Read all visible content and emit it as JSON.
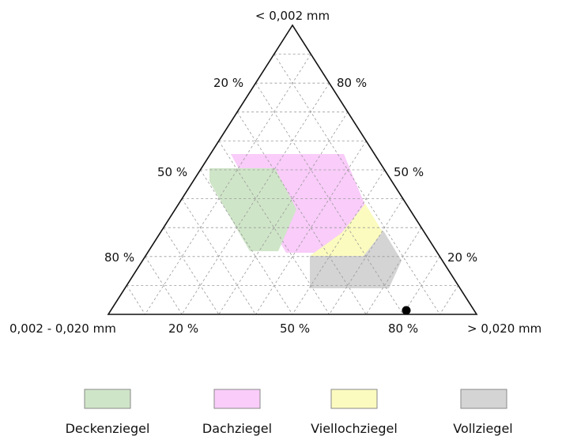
{
  "vertices": {
    "top": "< 0,002 mm",
    "left": "0,002 - 0,020 mm",
    "right": "> 0,020 mm"
  },
  "ticks": {
    "left_edge": [
      "20 %",
      "50 %",
      "80 %"
    ],
    "right_edge": [
      "80 %",
      "50 %",
      "20 %"
    ],
    "bottom_edge": [
      "20 %",
      "50 %",
      "80 %"
    ]
  },
  "regions": [
    {
      "name": "Dachziegel",
      "color": "#f9ccf9"
    },
    {
      "name": "Viellochziegel",
      "color": "#fbfbbf"
    },
    {
      "name": "Vollziegel",
      "color": "#d4d4d4"
    },
    {
      "name": "Deckenziegel",
      "color": "#cfe5c8"
    }
  ],
  "legend": [
    {
      "label": "Deckenziegel",
      "color": "#cfe5c8"
    },
    {
      "label": "Dachziegel",
      "color": "#f9ccf9"
    },
    {
      "label": "Viellochziegel",
      "color": "#fbfbbf"
    },
    {
      "label": "Vollziegel",
      "color": "#d4d4d4"
    }
  ],
  "colors": {
    "grid": "#999999",
    "outline": "#111111",
    "marker": "#000000"
  }
}
